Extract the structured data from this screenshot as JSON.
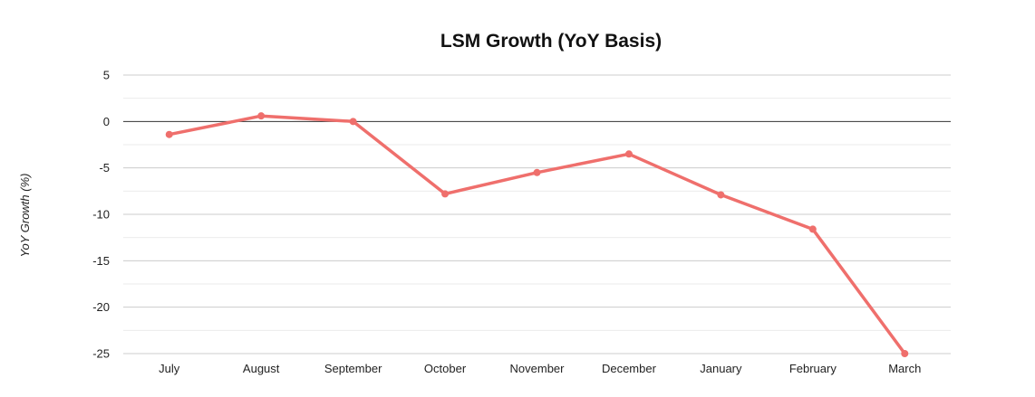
{
  "chart_data": {
    "type": "line",
    "title": "LSM Growth (YoY Basis)",
    "xlabel": "",
    "ylabel": "YoY Growth (%)",
    "categories": [
      "July",
      "August",
      "September",
      "October",
      "November",
      "December",
      "January",
      "February",
      "March"
    ],
    "series": [
      {
        "values": [
          -1.4,
          0.6,
          0.0,
          -7.8,
          -5.5,
          -3.5,
          -7.9,
          -11.6,
          -25.0
        ]
      }
    ],
    "ylim": [
      -25,
      5
    ],
    "yticks": [
      5,
      0,
      -5,
      -10,
      -15,
      -20,
      -25
    ],
    "grid": true,
    "minor_grid": true,
    "zero_line": true,
    "legend": "none",
    "colors": {
      "series": "#ef6f6c",
      "grid_major": "#cccccc",
      "grid_minor": "#ebebeb",
      "zero_line": "#333333",
      "text": "#222222"
    }
  }
}
